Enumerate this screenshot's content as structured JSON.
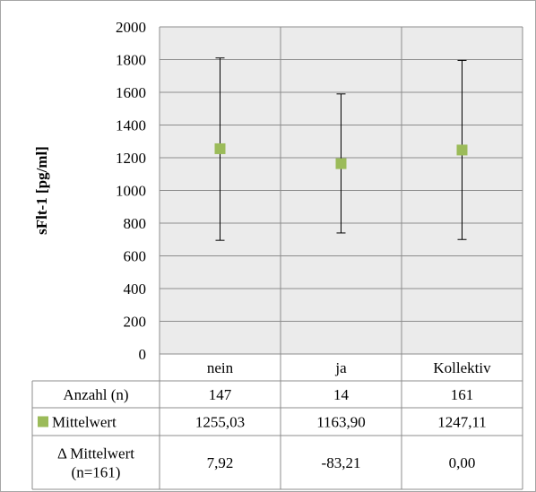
{
  "chart_data": {
    "type": "scatter",
    "ylabel": "sFlt-1 [pg/ml]",
    "ylim": [
      0,
      2000
    ],
    "yticks": [
      0,
      200,
      400,
      600,
      800,
      1000,
      1200,
      1400,
      1600,
      1800,
      2000
    ],
    "grid": true,
    "categories": [
      "nein",
      "ja",
      "Kollektiv"
    ],
    "series": [
      {
        "name": "Mittelwert",
        "color": "#9bbb59",
        "values": [
          1255.03,
          1163.9,
          1247.11
        ],
        "error_low": [
          695,
          740,
          700
        ],
        "error_high": [
          1810,
          1590,
          1795
        ]
      }
    ],
    "table": {
      "rows": [
        {
          "label": [
            "Anzahl (n)"
          ],
          "values": [
            "147",
            "14",
            "161"
          ],
          "legend_marker": false
        },
        {
          "label": [
            "Mittelwert"
          ],
          "values": [
            "1255,03",
            "1163,90",
            "1247,11"
          ],
          "legend_marker": true
        },
        {
          "label": [
            "Δ Mittelwert",
            "(n=161)"
          ],
          "values": [
            "7,92",
            "-83,21",
            "0,00"
          ],
          "legend_marker": false
        }
      ]
    }
  },
  "colors": {
    "marker": "#9bbb59",
    "plot_bg": "#ebebeb",
    "grid": "#8c8c8c",
    "border": "#a6a6a6"
  }
}
